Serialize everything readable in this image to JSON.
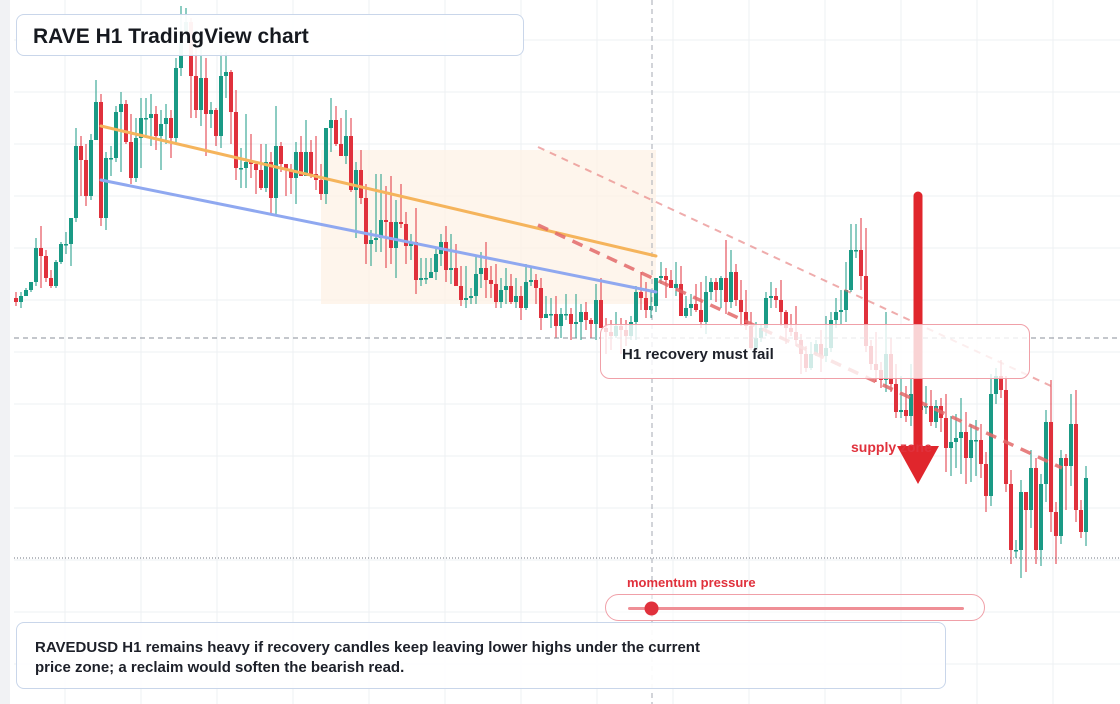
{
  "chart": {
    "title": "RAVE H1 TradingView chart",
    "recovery_note": "H1 recovery must fail",
    "zone_label": "supply zone",
    "momentum_label": "momentum pressure",
    "momentum_level": 0.07,
    "summary": "RAVEDUSD H1 remains heavy if recovery candles keep leaving lower highs under the current price zone; a reclaim would soften the bearish read."
  },
  "colors": {
    "bull": "#1a9a85",
    "bear": "#e0313c",
    "orange_line": "#f5b45c",
    "blue_line": "#8fa8f0",
    "dash_line": "#e36a6a",
    "arrow": "#e0262c",
    "zone_fill": "#fdf1e6",
    "grid": "#eef0f3"
  },
  "chart_data": {
    "type": "candlestick",
    "title": "RAVE H1 TradingView chart",
    "timeframe": "H1",
    "symbol": "RAVEDUSD",
    "axis_labels": "none printed",
    "grid": true,
    "candles_ohlc": [
      [
        80,
        78,
        83,
        76
      ],
      [
        78,
        81,
        83,
        75
      ],
      [
        81,
        84,
        85,
        82
      ],
      [
        84,
        88,
        88,
        83
      ],
      [
        88,
        105,
        110,
        86
      ],
      [
        105,
        101,
        116,
        85
      ],
      [
        101,
        90,
        104,
        88
      ],
      [
        90,
        86,
        94,
        85
      ],
      [
        86,
        98,
        99,
        85
      ],
      [
        98,
        107,
        108,
        97
      ],
      [
        107,
        107,
        113,
        102
      ],
      [
        107,
        120,
        120,
        96
      ],
      [
        120,
        156,
        165,
        118
      ],
      [
        156,
        149,
        161,
        131
      ],
      [
        149,
        131,
        157,
        126
      ],
      [
        131,
        159,
        162,
        129
      ],
      [
        159,
        178,
        189,
        171
      ],
      [
        178,
        120,
        182,
        116
      ],
      [
        120,
        150,
        153,
        114
      ],
      [
        150,
        150,
        156,
        141
      ],
      [
        150,
        173,
        176,
        148
      ],
      [
        173,
        177,
        183,
        143
      ],
      [
        177,
        158,
        179,
        157
      ],
      [
        158,
        140,
        172,
        137
      ],
      [
        140,
        160,
        170,
        138
      ],
      [
        160,
        170,
        180,
        145
      ],
      [
        170,
        170,
        180,
        160
      ],
      [
        170,
        172,
        182,
        156
      ],
      [
        172,
        161,
        176,
        154
      ],
      [
        161,
        167,
        174,
        144
      ],
      [
        167,
        170,
        177,
        157
      ],
      [
        170,
        160,
        174,
        150
      ],
      [
        160,
        195,
        200,
        157
      ],
      [
        195,
        213,
        226,
        191
      ],
      [
        213,
        218,
        225,
        208
      ],
      [
        218,
        191,
        220,
        170
      ],
      [
        191,
        174,
        208,
        170
      ],
      [
        174,
        190,
        208,
        166
      ],
      [
        190,
        172,
        200,
        151
      ],
      [
        172,
        174,
        178,
        165
      ],
      [
        174,
        161,
        175,
        156
      ],
      [
        161,
        191,
        203,
        155
      ],
      [
        191,
        193,
        203,
        180
      ],
      [
        193,
        173,
        194,
        157
      ],
      [
        173,
        145,
        184,
        139
      ],
      [
        145,
        145,
        155,
        135
      ],
      [
        145,
        148,
        172,
        135
      ],
      [
        148,
        147,
        162,
        140
      ],
      [
        147,
        144,
        148,
        132
      ],
      [
        144,
        135,
        157,
        134
      ],
      [
        135,
        148,
        157,
        133
      ],
      [
        148,
        130,
        153,
        122
      ],
      [
        130,
        156,
        176,
        122
      ],
      [
        156,
        147,
        158,
        143
      ],
      [
        147,
        144,
        147,
        131
      ],
      [
        144,
        140,
        147,
        132
      ],
      [
        140,
        153,
        158,
        127
      ],
      [
        153,
        141,
        161,
        141
      ],
      [
        141,
        153,
        169,
        141
      ],
      [
        153,
        142,
        159,
        140
      ],
      [
        142,
        139,
        161,
        134
      ],
      [
        139,
        132,
        147,
        129
      ],
      [
        132,
        165,
        165,
        127
      ],
      [
        165,
        169,
        180,
        153
      ],
      [
        169,
        157,
        176,
        156
      ],
      [
        157,
        151,
        170,
        151
      ],
      [
        151,
        161,
        174,
        147
      ],
      [
        161,
        134,
        170,
        133
      ],
      [
        134,
        144,
        148,
        110
      ],
      [
        144,
        130,
        154,
        127
      ],
      [
        130,
        107,
        137,
        97
      ],
      [
        107,
        109,
        114,
        96
      ],
      [
        109,
        110,
        142,
        103
      ],
      [
        110,
        119,
        142,
        103
      ],
      [
        119,
        118,
        136,
        95
      ],
      [
        118,
        105,
        141,
        97
      ],
      [
        105,
        118,
        129,
        90
      ],
      [
        118,
        117,
        137,
        115
      ],
      [
        117,
        106,
        123,
        97
      ],
      [
        106,
        108,
        112,
        99
      ],
      [
        108,
        89,
        125,
        82
      ],
      [
        89,
        90,
        100,
        86
      ],
      [
        90,
        90,
        100,
        87
      ],
      [
        90,
        93,
        100,
        90
      ],
      [
        93,
        102,
        105,
        89
      ],
      [
        102,
        108,
        112,
        96
      ],
      [
        108,
        94,
        116,
        88
      ],
      [
        94,
        95,
        112,
        87
      ],
      [
        95,
        86,
        107,
        86
      ],
      [
        86,
        79,
        96,
        76
      ],
      [
        79,
        80,
        96,
        75
      ],
      [
        80,
        81,
        85,
        77
      ],
      [
        81,
        92,
        101,
        77
      ],
      [
        92,
        95,
        103,
        85
      ],
      [
        95,
        89,
        108,
        80
      ],
      [
        89,
        87,
        96,
        80
      ],
      [
        87,
        78,
        97,
        75
      ],
      [
        78,
        84,
        90,
        75
      ],
      [
        84,
        86,
        95,
        77
      ],
      [
        86,
        78,
        92,
        77
      ],
      [
        78,
        81,
        90,
        75
      ],
      [
        81,
        75,
        86,
        69
      ],
      [
        75,
        88,
        97,
        74
      ],
      [
        88,
        89,
        95,
        86
      ],
      [
        89,
        85,
        92,
        77
      ],
      [
        85,
        70,
        90,
        64
      ],
      [
        70,
        72,
        81,
        70
      ],
      [
        72,
        72,
        80,
        65
      ],
      [
        72,
        66,
        81,
        60
      ],
      [
        66,
        72,
        75,
        60
      ],
      [
        72,
        72,
        82,
        69
      ],
      [
        72,
        67,
        75,
        59
      ],
      [
        67,
        68,
        82,
        60
      ],
      [
        68,
        73,
        77,
        59
      ],
      [
        73,
        69,
        78,
        64
      ],
      [
        69,
        67,
        70,
        60
      ],
      [
        67,
        79,
        87,
        59
      ],
      [
        79,
        65,
        90,
        65
      ],
      [
        65,
        63,
        70,
        52
      ],
      [
        63,
        61,
        69,
        54
      ],
      [
        61,
        66,
        73,
        60
      ],
      [
        66,
        64,
        70,
        52
      ],
      [
        64,
        61,
        69,
        56
      ],
      [
        61,
        68,
        71,
        59
      ],
      [
        68,
        83,
        86,
        59
      ],
      [
        83,
        80,
        93,
        74
      ],
      [
        80,
        74,
        88,
        70
      ],
      [
        74,
        76,
        84,
        70
      ],
      [
        76,
        90,
        90,
        73
      ],
      [
        90,
        91,
        98,
        87
      ],
      [
        91,
        89,
        95,
        80
      ],
      [
        89,
        85,
        94,
        85
      ],
      [
        85,
        87,
        98,
        81
      ],
      [
        87,
        71,
        96,
        71
      ],
      [
        71,
        75,
        81,
        70
      ],
      [
        75,
        77,
        82,
        71
      ],
      [
        77,
        74,
        87,
        73
      ],
      [
        74,
        68,
        88,
        65
      ],
      [
        68,
        83,
        91,
        62
      ],
      [
        83,
        88,
        90,
        79
      ],
      [
        88,
        84,
        90,
        78
      ],
      [
        84,
        90,
        91,
        75
      ],
      [
        90,
        78,
        109,
        72
      ],
      [
        78,
        93,
        104,
        75
      ],
      [
        93,
        79,
        97,
        76
      ],
      [
        79,
        73,
        89,
        66
      ],
      [
        73,
        66,
        84,
        64
      ],
      [
        66,
        55,
        73,
        54
      ],
      [
        55,
        60,
        68,
        54
      ],
      [
        60,
        65,
        67,
        58
      ],
      [
        65,
        80,
        83,
        61
      ],
      [
        80,
        81,
        88,
        75
      ],
      [
        81,
        79,
        85,
        75
      ],
      [
        79,
        73,
        89,
        66
      ],
      [
        73,
        65,
        74,
        57
      ],
      [
        65,
        63,
        72,
        61
      ],
      [
        63,
        59,
        76,
        56
      ],
      [
        59,
        52,
        62,
        42
      ],
      [
        52,
        45,
        56,
        43
      ],
      [
        45,
        52,
        58,
        44
      ],
      [
        52,
        57,
        59,
        51
      ],
      [
        57,
        51,
        64,
        43
      ],
      [
        51,
        55,
        71,
        48
      ],
      [
        55,
        69,
        73,
        53
      ],
      [
        69,
        73,
        80,
        65
      ],
      [
        73,
        74,
        84,
        67
      ],
      [
        74,
        84,
        98,
        68
      ],
      [
        84,
        104,
        117,
        83
      ],
      [
        104,
        104,
        117,
        100
      ],
      [
        104,
        91,
        120,
        84
      ],
      [
        91,
        56,
        115,
        53
      ],
      [
        56,
        47,
        59,
        44
      ],
      [
        47,
        44,
        63,
        38
      ],
      [
        44,
        39,
        48,
        35
      ],
      [
        39,
        52,
        73,
        33
      ],
      [
        52,
        37,
        60,
        33
      ],
      [
        37,
        23,
        47,
        20
      ],
      [
        23,
        24,
        41,
        20
      ],
      [
        24,
        21,
        36,
        18
      ],
      [
        21,
        32,
        47,
        16
      ],
      [
        32,
        24,
        38,
        21
      ],
      [
        24,
        26,
        34,
        19
      ],
      [
        26,
        26,
        36,
        22
      ],
      [
        26,
        18,
        34,
        16
      ],
      [
        18,
        26,
        29,
        15
      ],
      [
        26,
        20,
        30,
        13
      ],
      [
        20,
        5,
        32,
        -7
      ],
      [
        5,
        8,
        21,
        -9
      ],
      [
        8,
        10,
        22,
        -5
      ],
      [
        10,
        13,
        30,
        -8
      ],
      [
        13,
        0,
        23,
        -13
      ],
      [
        0,
        9,
        17,
        -12
      ],
      [
        9,
        9,
        19,
        -9
      ],
      [
        9,
        -3,
        17,
        -10
      ],
      [
        -3,
        -19,
        3,
        -27
      ],
      [
        -19,
        32,
        42,
        -24
      ],
      [
        32,
        41,
        45,
        27
      ],
      [
        41,
        34,
        49,
        30
      ],
      [
        34,
        -13,
        41,
        -17
      ],
      [
        -13,
        -46,
        -6,
        -53
      ],
      [
        -46,
        -46,
        -41,
        -50
      ],
      [
        -46,
        -17,
        -11,
        -60
      ],
      [
        -17,
        -26,
        -20,
        -57
      ],
      [
        -26,
        -5,
        4,
        -35
      ],
      [
        -5,
        -46,
        0,
        -53
      ],
      [
        -46,
        -13,
        -8,
        -54
      ],
      [
        -13,
        18,
        24,
        -22
      ],
      [
        18,
        -27,
        39,
        -37
      ],
      [
        -27,
        -39,
        -22,
        -53
      ],
      [
        -39,
        0,
        4,
        -43
      ],
      [
        0,
        -4,
        2,
        -26
      ],
      [
        -4,
        17,
        32,
        -14
      ],
      [
        17,
        -26,
        34,
        -32
      ],
      [
        -26,
        -37,
        -21,
        -40
      ],
      [
        -37,
        -10,
        -4,
        -44
      ]
    ],
    "trendlines": [
      {
        "from_candle": 17,
        "from_value": 166,
        "to_candle": 128,
        "to_value": 101,
        "color": "orange"
      },
      {
        "from_candle": 17,
        "from_value": 139,
        "to_candle": 128,
        "to_value": 83,
        "color": "blue"
      }
    ],
    "supply_zone": {
      "from_candle": 61,
      "to_candle": 128,
      "lower": 77,
      "upper": 154
    },
    "momentum_pressure_level": 0.07,
    "annotations": [
      "H1 recovery must fail",
      "supply zone",
      "momentum pressure"
    ]
  }
}
